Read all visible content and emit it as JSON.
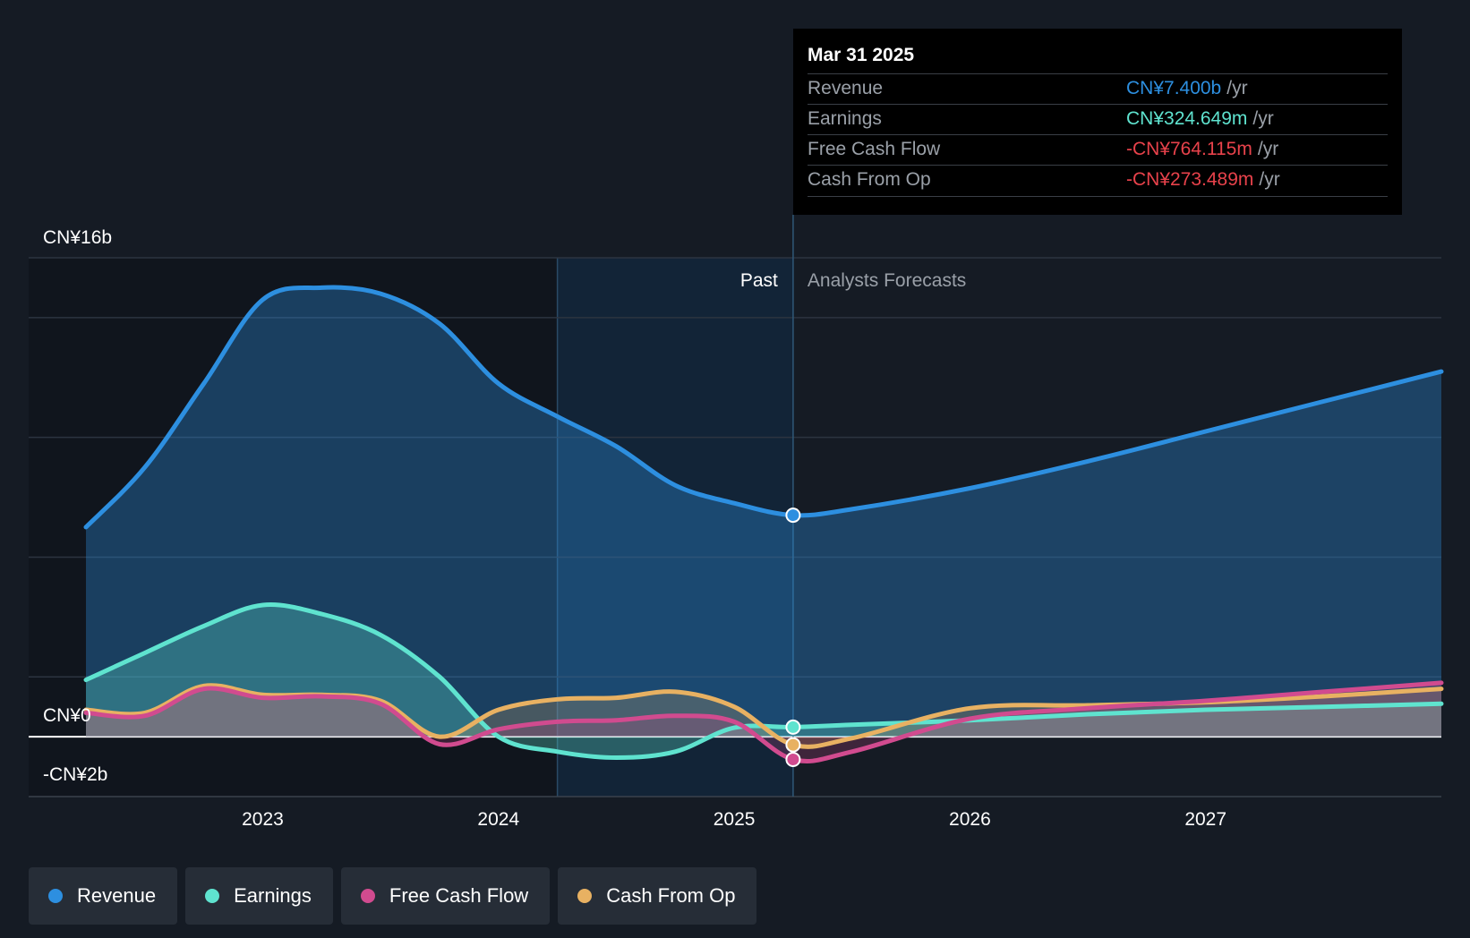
{
  "chart_data": {
    "type": "area",
    "y_axis": {
      "top_label": "CN¥16b",
      "zero_label": "CN¥0",
      "bottom_label": "-CN¥2b",
      "ylim": [
        -2,
        16
      ],
      "unit": "CN¥ billions"
    },
    "x_axis": {
      "tick_labels": [
        "2023",
        "2024",
        "2025",
        "2026",
        "2027"
      ],
      "xlim": [
        2022.25,
        2028.0
      ]
    },
    "regions": {
      "past_label": "Past",
      "forecast_label": "Analysts Forecasts",
      "divider_x": 2025.25,
      "highlight_start_x": 2024.25
    },
    "grid": true,
    "legend_position": "bottom-left",
    "series": [
      {
        "name": "Revenue",
        "color": "#2d8fe0",
        "points": [
          [
            2022.25,
            7.0
          ],
          [
            2022.5,
            9.0
          ],
          [
            2022.75,
            11.8
          ],
          [
            2023.0,
            14.6
          ],
          [
            2023.25,
            15.0
          ],
          [
            2023.5,
            14.8
          ],
          [
            2023.75,
            13.8
          ],
          [
            2024.0,
            11.8
          ],
          [
            2024.25,
            10.7
          ],
          [
            2024.5,
            9.7
          ],
          [
            2024.75,
            8.4
          ],
          [
            2025.0,
            7.8
          ],
          [
            2025.25,
            7.4
          ],
          [
            2025.5,
            7.6
          ],
          [
            2026.0,
            8.3
          ],
          [
            2026.5,
            9.2
          ],
          [
            2027.0,
            10.2
          ],
          [
            2027.5,
            11.2
          ],
          [
            2028.0,
            12.2
          ]
        ]
      },
      {
        "name": "Earnings",
        "color": "#5fe3cf",
        "points": [
          [
            2022.25,
            1.9
          ],
          [
            2022.5,
            2.8
          ],
          [
            2022.75,
            3.7
          ],
          [
            2023.0,
            4.4
          ],
          [
            2023.25,
            4.1
          ],
          [
            2023.5,
            3.4
          ],
          [
            2023.75,
            2.0
          ],
          [
            2024.0,
            0.0
          ],
          [
            2024.25,
            -0.5
          ],
          [
            2024.5,
            -0.7
          ],
          [
            2024.75,
            -0.5
          ],
          [
            2025.0,
            0.3
          ],
          [
            2025.25,
            0.32
          ],
          [
            2025.5,
            0.4
          ],
          [
            2026.0,
            0.55
          ],
          [
            2026.5,
            0.75
          ],
          [
            2027.0,
            0.9
          ],
          [
            2027.5,
            1.0
          ],
          [
            2028.0,
            1.1
          ]
        ]
      },
      {
        "name": "Free Cash Flow",
        "color": "#d14b8f",
        "points": [
          [
            2022.25,
            0.8
          ],
          [
            2022.5,
            0.7
          ],
          [
            2022.75,
            1.6
          ],
          [
            2023.0,
            1.3
          ],
          [
            2023.25,
            1.35
          ],
          [
            2023.5,
            1.1
          ],
          [
            2023.75,
            -0.25
          ],
          [
            2024.0,
            0.25
          ],
          [
            2024.25,
            0.5
          ],
          [
            2024.5,
            0.55
          ],
          [
            2024.75,
            0.7
          ],
          [
            2025.0,
            0.5
          ],
          [
            2025.25,
            -0.76
          ],
          [
            2025.5,
            -0.5
          ],
          [
            2026.0,
            0.6
          ],
          [
            2026.5,
            0.95
          ],
          [
            2027.0,
            1.2
          ],
          [
            2027.5,
            1.5
          ],
          [
            2028.0,
            1.8
          ]
        ]
      },
      {
        "name": "Cash From Op",
        "color": "#e8b162",
        "points": [
          [
            2022.25,
            0.9
          ],
          [
            2022.5,
            0.8
          ],
          [
            2022.75,
            1.7
          ],
          [
            2023.0,
            1.4
          ],
          [
            2023.25,
            1.4
          ],
          [
            2023.5,
            1.2
          ],
          [
            2023.75,
            0.0
          ],
          [
            2024.0,
            0.9
          ],
          [
            2024.25,
            1.25
          ],
          [
            2024.5,
            1.3
          ],
          [
            2024.75,
            1.5
          ],
          [
            2025.0,
            1.0
          ],
          [
            2025.25,
            -0.27
          ],
          [
            2025.5,
            -0.05
          ],
          [
            2026.0,
            0.95
          ],
          [
            2026.5,
            1.05
          ],
          [
            2027.0,
            1.15
          ],
          [
            2027.5,
            1.35
          ],
          [
            2028.0,
            1.6
          ]
        ]
      }
    ]
  },
  "tooltip": {
    "date": "Mar 31 2025",
    "rows": [
      {
        "label": "Revenue",
        "value": "CN¥7.400b",
        "unit": "/yr",
        "color": "#2d8fe0"
      },
      {
        "label": "Earnings",
        "value": "CN¥324.649m",
        "unit": "/yr",
        "color": "#5fe3cf"
      },
      {
        "label": "Free Cash Flow",
        "value": "-CN¥764.115m",
        "unit": "/yr",
        "color": "#e8424b"
      },
      {
        "label": "Cash From Op",
        "value": "-CN¥273.489m",
        "unit": "/yr",
        "color": "#e8424b"
      }
    ]
  },
  "legend": [
    {
      "label": "Revenue",
      "color": "#2d8fe0"
    },
    {
      "label": "Earnings",
      "color": "#5fe3cf"
    },
    {
      "label": "Free Cash Flow",
      "color": "#d14b8f"
    },
    {
      "label": "Cash From Op",
      "color": "#e8b162"
    }
  ]
}
